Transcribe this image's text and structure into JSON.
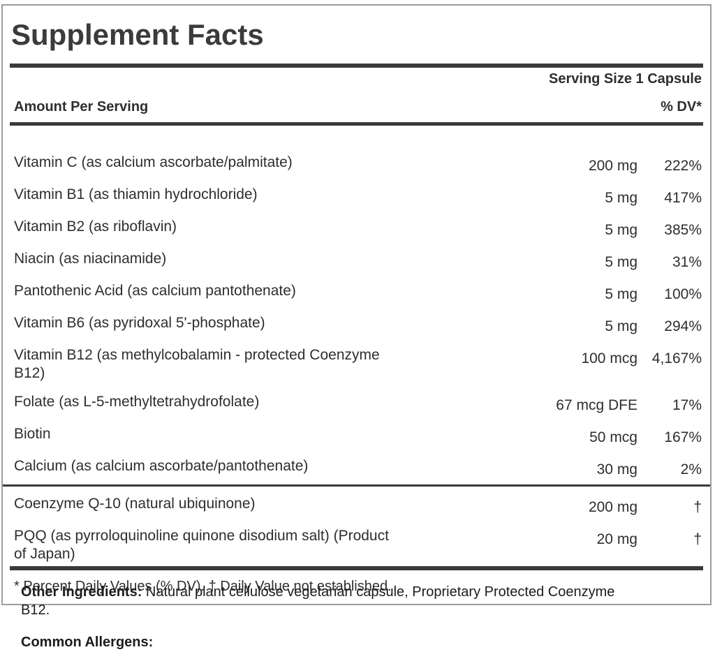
{
  "panel": {
    "title": "Supplement Facts",
    "serving_size": "Serving Size 1 Capsule",
    "columns": {
      "amount_header": "Amount Per Serving",
      "dv_header": "% DV*"
    },
    "rows": [
      {
        "label": "Vitamin C (as calcium ascorbate/palmitate)",
        "amount": "200 mg",
        "dv": "222%"
      },
      {
        "label": "Vitamin B1 (as thiamin hydrochloride)",
        "amount": "5 mg",
        "dv": "417%"
      },
      {
        "label": "Vitamin B2 (as riboflavin)",
        "amount": "5 mg",
        "dv": "385%"
      },
      {
        "label": "Niacin (as niacinamide)",
        "amount": "5 mg",
        "dv": "31%"
      },
      {
        "label": "Pantothenic Acid (as calcium pantothenate)",
        "amount": "5 mg",
        "dv": "100%"
      },
      {
        "label": "Vitamin B6 (as pyridoxal 5'-phosphate)",
        "amount": "5 mg",
        "dv": "294%"
      },
      {
        "label": "Vitamin B12 (as methylcobalamin - protected Coenzyme\nB12)",
        "amount": "100 mcg",
        "dv": "4,167%"
      },
      {
        "label": "Folate (as L-5-methyltetrahydrofolate)",
        "amount": "67 mcg DFE",
        "dv": "17%"
      },
      {
        "label": "Biotin",
        "amount": "50 mcg",
        "dv": "167%"
      },
      {
        "label": "Calcium (as calcium ascorbate/pantothenate)",
        "amount": "30 mg",
        "dv": "2%",
        "rule_after": true
      },
      {
        "label": "Coenzyme Q-10 (natural ubiquinone)",
        "amount": "200 mg",
        "dv": "†"
      },
      {
        "label": "PQQ (as pyrroloquinoline quinone disodium salt) (Product\nof Japan)",
        "amount": "20 mg",
        "dv": "†"
      }
    ],
    "footnote": "* Percent Daily Values (% DV). † Daily Value not established."
  },
  "below": {
    "other_ingredients_label": "Other Ingredients:",
    "other_ingredients_text": " Natural plant cellulose vegetarian capsule, Proprietary Protected Coenzyme\nB12.",
    "common_allergens_label": "Common Allergens:"
  },
  "colors": {
    "rule": "#3a3a3a",
    "panel_text": "#2e2e2e",
    "panel_border": "#9c9c9c",
    "body_text": "#1c1c1c",
    "background": "#ffffff"
  }
}
